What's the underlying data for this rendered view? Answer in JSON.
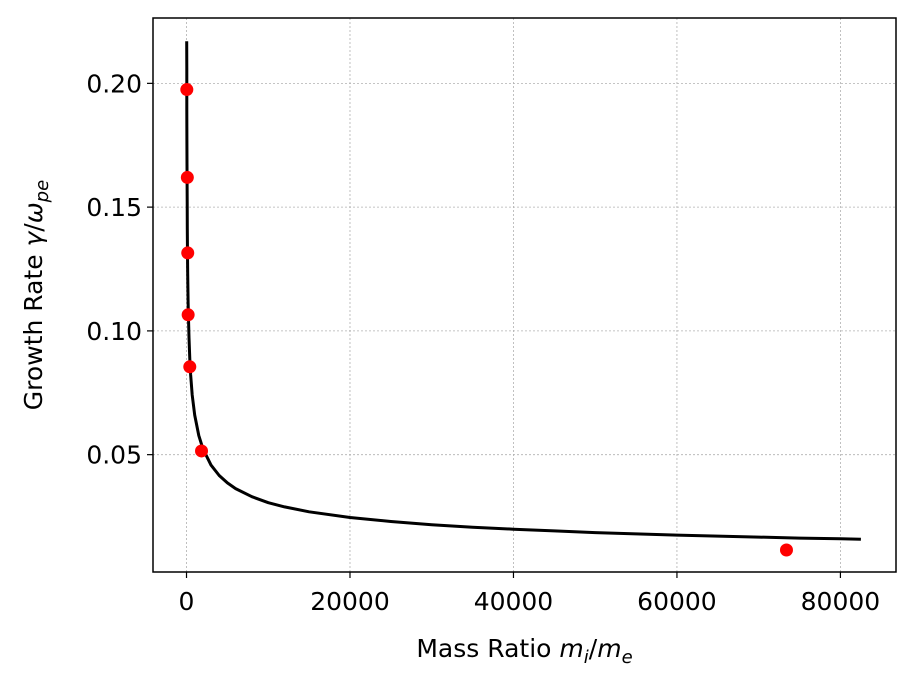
{
  "chart_data": {
    "type": "line",
    "title": "",
    "xlabel": {
      "prefix": "Mass Ratio ",
      "math": {
        "a": "m",
        "a_sub": "i",
        "b": "m",
        "b_sub": "e"
      }
    },
    "ylabel": {
      "prefix": "Growth Rate ",
      "math": {
        "a": "γ",
        "b": "ω",
        "b_sub": "pe"
      }
    },
    "xlim": [
      -4100,
      86800
    ],
    "ylim": [
      0.0026,
      0.2264
    ],
    "xticks": [
      0,
      20000,
      40000,
      60000,
      80000
    ],
    "xtick_labels": [
      "0",
      "20000",
      "40000",
      "60000",
      "80000"
    ],
    "yticks": [
      0.05,
      0.1,
      0.15,
      0.2
    ],
    "ytick_labels": [
      "0.05",
      "0.10",
      "0.15",
      "0.20"
    ],
    "grid": true,
    "series": [
      {
        "kind": "line",
        "color": "#000000",
        "x": [
          25,
          30,
          40,
          50,
          60,
          80,
          100,
          125,
          150,
          200,
          250,
          300,
          400,
          500,
          700,
          1000,
          1500,
          2000,
          3000,
          4000,
          5000,
          6000,
          8000,
          10000,
          12000,
          15000,
          20000,
          25000,
          30000,
          35000,
          40000,
          45000,
          50000,
          55000,
          60000,
          65000,
          70000,
          75000,
          80000,
          82500
        ],
        "y": [
          0.217,
          0.2063,
          0.1895,
          0.177,
          0.1671,
          0.1521,
          0.1412,
          0.1307,
          0.1229,
          0.1115,
          0.1034,
          0.0973,
          0.0886,
          0.0825,
          0.0741,
          0.066,
          0.0577,
          0.0524,
          0.0458,
          0.0416,
          0.0386,
          0.0363,
          0.033,
          0.0306,
          0.0289,
          0.0269,
          0.0246,
          0.023,
          0.0217,
          0.0207,
          0.0199,
          0.0192,
          0.0185,
          0.018,
          0.0175,
          0.0171,
          0.0167,
          0.0163,
          0.016,
          0.0158
        ]
      },
      {
        "kind": "scatter",
        "color": "#ff0000",
        "x": [
          36,
          100,
          150,
          200,
          400,
          1836,
          73400
        ],
        "y": [
          0.1975,
          0.162,
          0.1315,
          0.1065,
          0.0855,
          0.0515,
          0.0115
        ]
      }
    ]
  }
}
